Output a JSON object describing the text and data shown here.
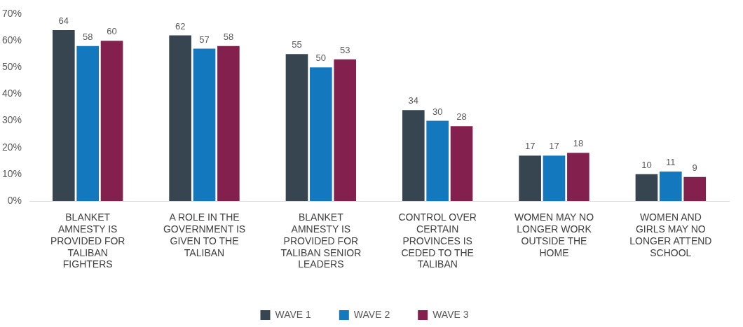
{
  "chart_data": {
    "type": "bar",
    "categories": [
      "BLANKET AMNESTY IS PROVIDED FOR TALIBAN FIGHTERS",
      "A ROLE IN THE GOVERNMENT IS GIVEN TO THE TALIBAN",
      "BLANKET AMNESTY IS PROVIDED FOR TALIBAN SENIOR LEADERS",
      "CONTROL OVER CERTAIN PROVINCES IS CEDED TO THE TALIBAN",
      "WOMEN MAY NO LONGER WORK OUTSIDE THE HOME",
      "WOMEN AND GIRLS MAY NO LONGER ATTEND SCHOOL"
    ],
    "series": [
      {
        "name": "WAVE 1",
        "color": "#36454f",
        "values": [
          64,
          62,
          55,
          34,
          17,
          10
        ]
      },
      {
        "name": "WAVE 2",
        "color": "#1478be",
        "values": [
          58,
          57,
          50,
          30,
          17,
          11
        ]
      },
      {
        "name": "WAVE 3",
        "color": "#84204e",
        "values": [
          60,
          58,
          53,
          28,
          18,
          9
        ]
      }
    ],
    "ylim": [
      0,
      70
    ],
    "yticks": [
      {
        "value": 0,
        "label": "0%"
      },
      {
        "value": 10,
        "label": "10%"
      },
      {
        "value": 20,
        "label": "20%"
      },
      {
        "value": 30,
        "label": "30%"
      },
      {
        "value": 40,
        "label": "40%"
      },
      {
        "value": 50,
        "label": "50%"
      },
      {
        "value": 60,
        "label": "60%"
      },
      {
        "value": 70,
        "label": "70%"
      }
    ],
    "data_labels": true,
    "legend": "bottom",
    "grid": false
  }
}
